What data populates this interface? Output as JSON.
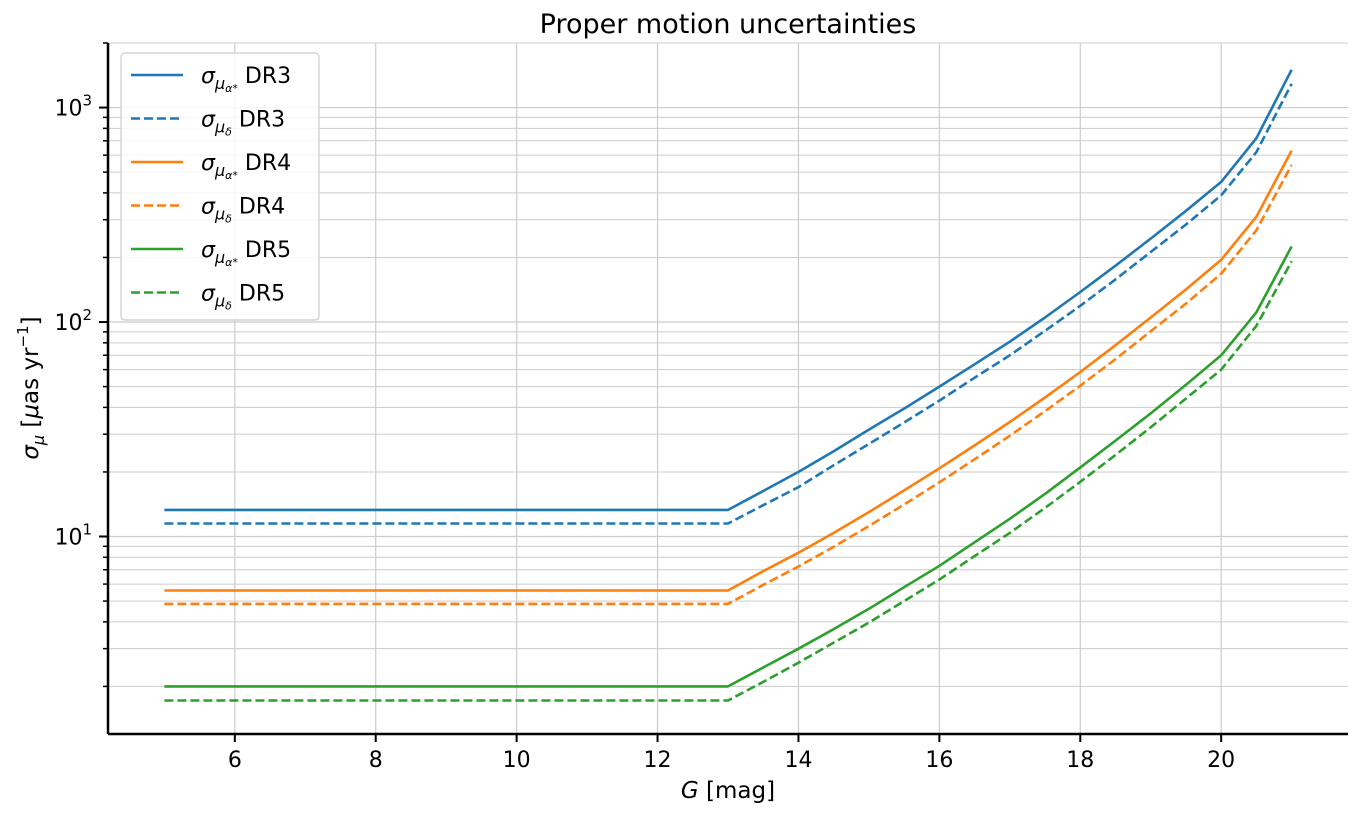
{
  "chart_data": {
    "type": "line",
    "title": "Proper motion uncertainties",
    "xlabel": "G [mag]",
    "ylabel": "σμ [μas yr−1]",
    "xlim": [
      4.2,
      21.8
    ],
    "ylim": [
      1.2,
      2000
    ],
    "yscale": "log",
    "xticks": [
      6,
      8,
      10,
      12,
      14,
      16,
      18,
      20
    ],
    "xtick_labels": [
      "6",
      "8",
      "10",
      "12",
      "14",
      "16",
      "18",
      "20"
    ],
    "ytick_labels": [
      "10",
      "10",
      "10"
    ],
    "ytick_exponents": [
      "1",
      "2",
      "3"
    ],
    "grid": true,
    "legend_placement": "top-left",
    "x": [
      5,
      13,
      13.5,
      14,
      14.5,
      15,
      15.5,
      16,
      16.5,
      17,
      17.5,
      18,
      18.5,
      19,
      19.5,
      20,
      20.5,
      21
    ],
    "series": [
      {
        "name": "σμα* DR3",
        "sym": "σ",
        "sub": "μ",
        "subsub": "α*",
        "suffix": "DR3",
        "color": "#1f77b4",
        "dash": false,
        "values": [
          13.3,
          13.3,
          16.3,
          20,
          25,
          31.5,
          39.5,
          50,
          63.5,
          81,
          105,
          138,
          183,
          245,
          330,
          450,
          720,
          1500
        ]
      },
      {
        "name": "σμδ DR3",
        "sym": "σ",
        "sub": "μ",
        "subsub": "δ",
        "suffix": "DR3",
        "color": "#1f77b4",
        "dash": true,
        "values": [
          11.5,
          11.5,
          14,
          17,
          21.5,
          27,
          34,
          43,
          55,
          70,
          91,
          119,
          158,
          212,
          285,
          390,
          620,
          1290
        ]
      },
      {
        "name": "σμα* DR4",
        "sym": "σ",
        "sub": "μ",
        "subsub": "α*",
        "suffix": "DR4",
        "color": "#ff7f0e",
        "dash": false,
        "values": [
          5.6,
          5.6,
          6.9,
          8.4,
          10.4,
          13,
          16.4,
          20.8,
          26.6,
          34.2,
          44.5,
          58.5,
          78,
          105,
          142,
          195,
          310,
          630
        ]
      },
      {
        "name": "σμδ DR4",
        "sym": "σ",
        "sub": "μ",
        "subsub": "δ",
        "suffix": "DR4",
        "color": "#ff7f0e",
        "dash": true,
        "values": [
          4.85,
          4.85,
          5.95,
          7.25,
          8.95,
          11.2,
          14.1,
          17.9,
          22.9,
          29.5,
          38.4,
          50.5,
          67.2,
          90.5,
          122,
          168,
          268,
          540
        ]
      },
      {
        "name": "σμα* DR5",
        "sym": "σ",
        "sub": "μ",
        "subsub": "α*",
        "suffix": "DR5",
        "color": "#2ca02c",
        "dash": false,
        "values": [
          2.0,
          2.0,
          2.45,
          3.0,
          3.7,
          4.6,
          5.8,
          7.3,
          9.4,
          12.1,
          15.8,
          21,
          28,
          37.5,
          51,
          70,
          111,
          225
        ]
      },
      {
        "name": "σμδ DR5",
        "sym": "σ",
        "sub": "μ",
        "subsub": "δ",
        "suffix": "DR5",
        "color": "#2ca02c",
        "dash": true,
        "values": [
          1.72,
          1.72,
          2.1,
          2.58,
          3.2,
          3.97,
          5.0,
          6.3,
          8.1,
          10.4,
          13.6,
          18,
          24,
          32.3,
          44,
          60,
          96,
          192
        ]
      }
    ]
  }
}
